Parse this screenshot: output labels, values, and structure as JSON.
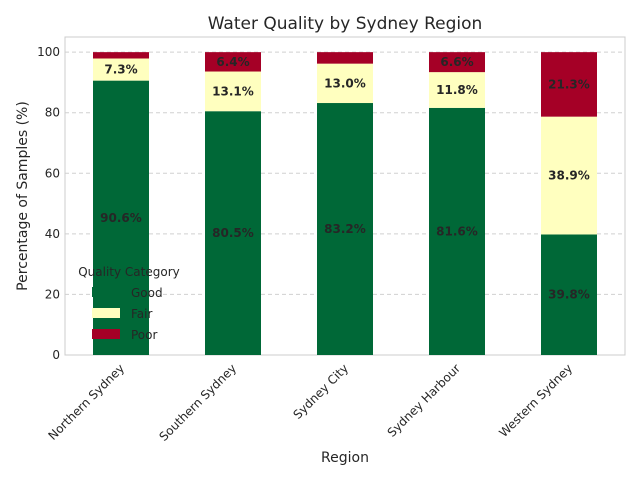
{
  "chart_data": {
    "type": "bar",
    "stacked": true,
    "title": "Water Quality by Sydney Region",
    "xlabel": "Region",
    "ylabel": "Percentage of Samples (%)",
    "ylim": [
      0,
      105
    ],
    "yticks": [
      0,
      20,
      40,
      60,
      80,
      100
    ],
    "grid": true,
    "categories": [
      "Northern Sydney",
      "Southern Sydney",
      "Sydney City",
      "Sydney Harbour",
      "Western Sydney"
    ],
    "series": [
      {
        "name": "Good",
        "color": "#006837",
        "values": [
          90.6,
          80.5,
          83.2,
          81.6,
          39.8
        ],
        "labels": [
          "90.6%",
          "80.5%",
          "83.2%",
          "81.6%",
          "39.8%"
        ]
      },
      {
        "name": "Fair",
        "color": "#ffffbf",
        "values": [
          7.3,
          13.1,
          13.0,
          11.8,
          38.9
        ],
        "labels": [
          "7.3%",
          "13.1%",
          "13.0%",
          "11.8%",
          "38.9%"
        ]
      },
      {
        "name": "Poor",
        "color": "#a50026",
        "values": [
          2.1,
          6.4,
          3.8,
          6.6,
          21.3
        ],
        "labels": [
          "",
          "6.4%",
          "",
          "6.6%",
          "21.3%"
        ]
      }
    ],
    "legend": {
      "title": "Quality Category",
      "placement": "center-left"
    }
  }
}
